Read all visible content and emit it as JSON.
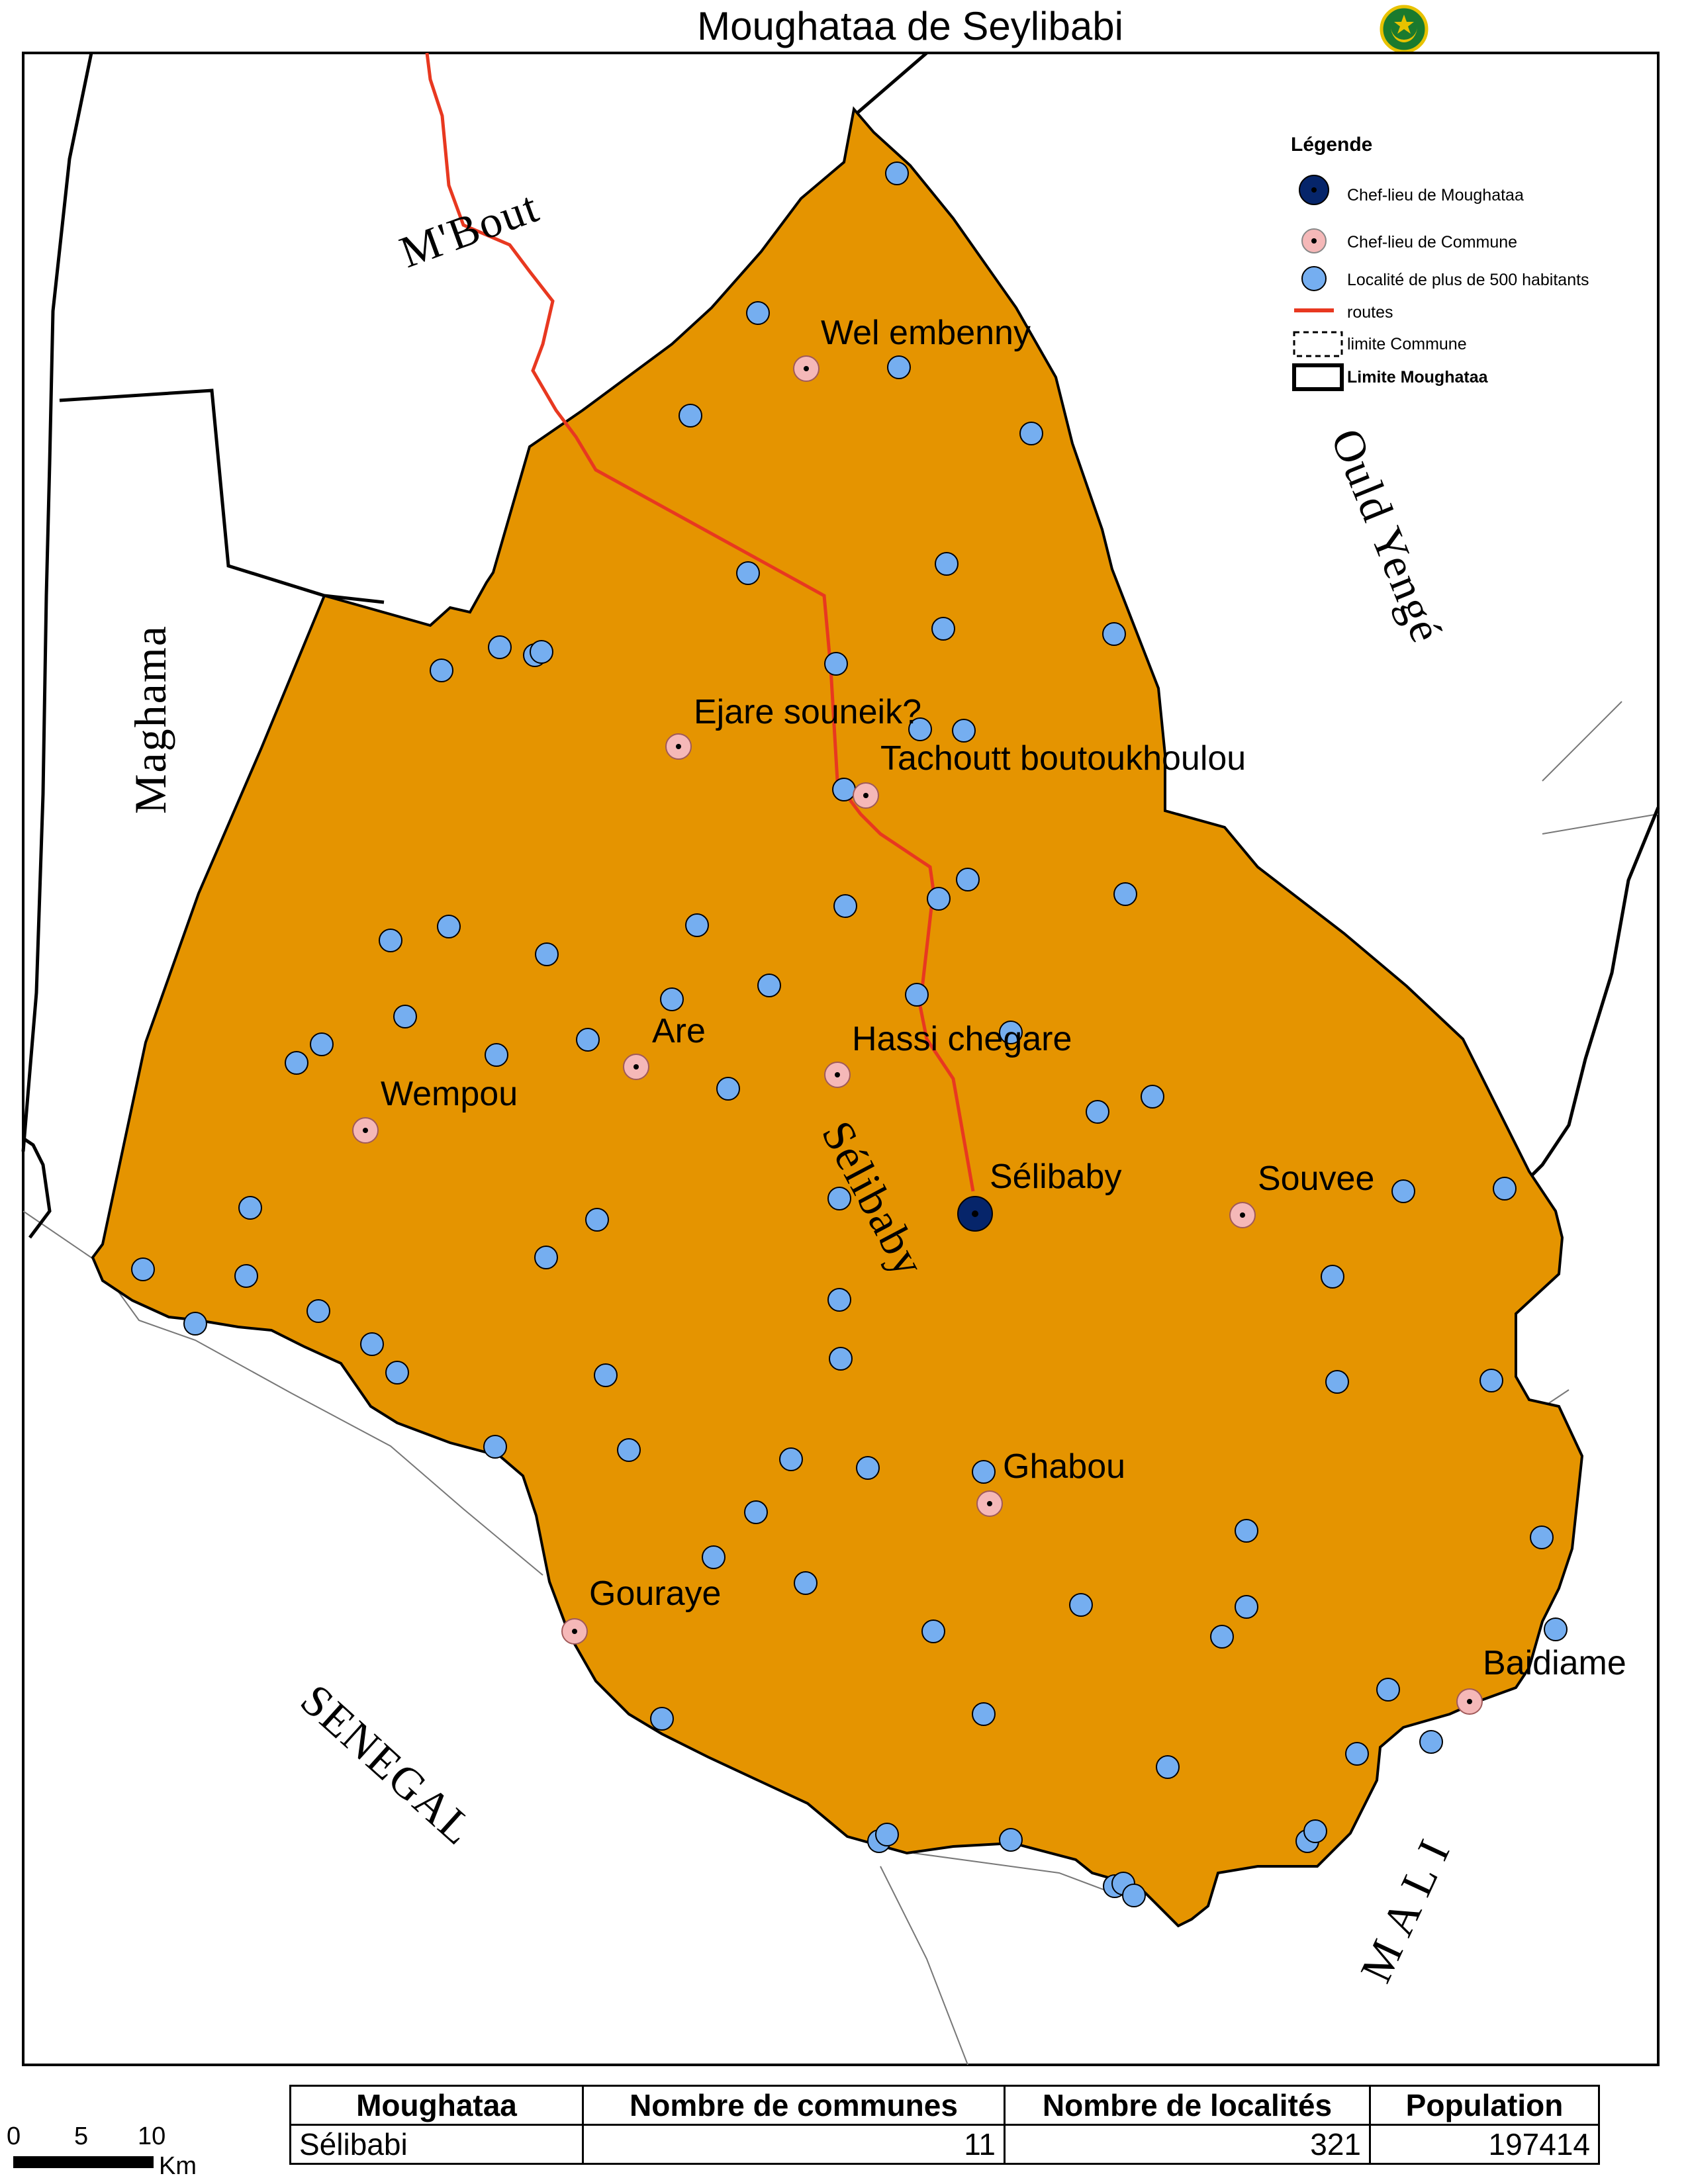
{
  "title": "Moughataa de Seylibabi",
  "emblem": {
    "icon": "mauritania-emblem-icon",
    "colors": {
      "green": "#1a7a2e",
      "gold": "#e8c200"
    }
  },
  "colors": {
    "moughataa_fill": "#e59400",
    "locality": "#75aef0",
    "commune_center": "#f5b8b8",
    "chef_lieu": "#06256a",
    "road": "#e83820"
  },
  "legend": {
    "title": "Légende",
    "items": [
      {
        "label": "Chef-lieu de Moughataa",
        "symbol": "chef-lieu-moughataa-symbol"
      },
      {
        "label": "Chef-lieu de Commune",
        "symbol": "chef-lieu-commune-symbol"
      },
      {
        "label": "Localité de plus de 500 habitants",
        "symbol": "locality-symbol"
      },
      {
        "label": "routes",
        "symbol": "road-line-symbol"
      },
      {
        "label": "limite Commune",
        "symbol": "commune-boundary-symbol"
      },
      {
        "label": "Limite Moughataa",
        "symbol": "moughataa-boundary-symbol"
      }
    ]
  },
  "neighbors": {
    "mbout": "M'Bout",
    "maghama": "Maghama",
    "ould_yenge": "Ould Yengé",
    "senegal": "SENEGAL",
    "mali": "M A L I",
    "selibaby_region": "Sélibaby"
  },
  "towns": {
    "selibaby": "Sélibaby",
    "wel_embenny": "Wel embenny",
    "ejare": "Ejare souneik?",
    "tachoutt": "Tachoutt boutoukhoulou",
    "are": "Are",
    "hassi": "Hassi chegare",
    "wempou": "Wempou",
    "souvee": "Souvee",
    "ghabou": "Ghabou",
    "gouraye": "Gouraye",
    "baidiame": "Baidiame"
  },
  "scale_bar": {
    "ticks": [
      "0",
      "5",
      "10"
    ],
    "unit": "Km"
  },
  "table": {
    "headers": [
      "Moughataa",
      "Nombre de communes",
      "Nombre de localités",
      "Population"
    ],
    "rows": [
      [
        "Sélibabi",
        "11",
        "321",
        "197414"
      ]
    ]
  }
}
